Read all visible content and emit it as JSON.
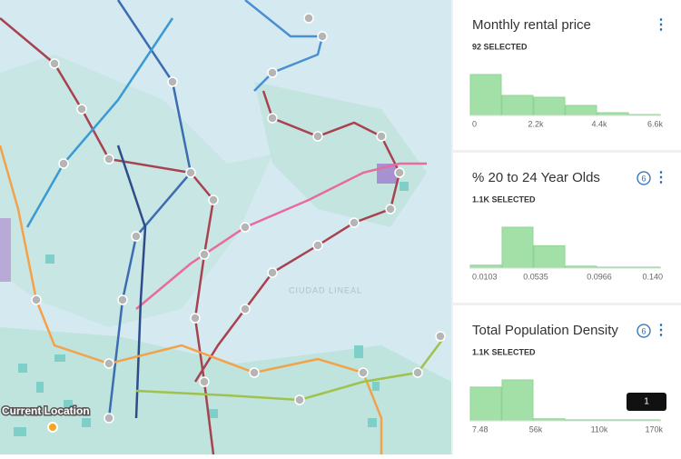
{
  "map": {
    "location_label": "Current Location",
    "district_label": "CIUDAD LINEAL"
  },
  "widgets": [
    {
      "title": "Monthly rental price",
      "selected": "92 SELECTED",
      "histogram": {
        "values": [
          45,
          22,
          20,
          11,
          3,
          1
        ],
        "axis_labels": [
          "0",
          "2.2k",
          "4.4k",
          "6.6k"
        ]
      }
    },
    {
      "title": "% 20 to 24 Year Olds",
      "badge": "6",
      "selected": "1.1K SELECTED",
      "histogram": {
        "values": [
          3,
          42,
          23,
          2,
          1,
          1
        ],
        "axis_labels": [
          "0.0103",
          "0.0535",
          "0.0966",
          "0.140"
        ]
      }
    },
    {
      "title": "Total Population Density",
      "badge": "6",
      "selected": "1.1K SELECTED",
      "histogram": {
        "values": [
          33,
          40,
          2,
          1,
          1,
          1
        ],
        "axis_labels": [
          "7.48",
          "56k",
          "110k",
          "170k"
        ]
      },
      "tooltip": "1"
    }
  ]
}
